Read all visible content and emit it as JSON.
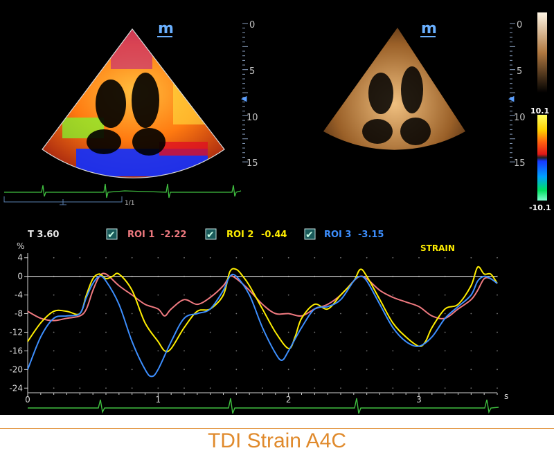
{
  "brand_glyph": "m",
  "depth_scale": {
    "ticks": [
      "0",
      "5",
      "10",
      "15"
    ]
  },
  "color_scale": {
    "max_label": "10.1",
    "min_label": "-10.1"
  },
  "loop": {
    "frame": "1/1"
  },
  "readout": {
    "time": "T 3.60",
    "rois": [
      {
        "label": "ROI 1",
        "value": "-2.22",
        "color": "#f07a80"
      },
      {
        "label": "ROI 2",
        "value": "-0.44",
        "color": "#ffee00"
      },
      {
        "label": "ROI 3",
        "value": "-3.15",
        "color": "#3d8fff"
      }
    ],
    "mode": "STRAIN"
  },
  "chart_data": {
    "type": "line",
    "ylabel": "%",
    "xlabel": "s",
    "xlim": [
      0,
      3.6
    ],
    "ylim": [
      -25,
      5
    ],
    "y_ticks": [
      4,
      0,
      -4,
      -8,
      -12,
      -16,
      -20,
      -24
    ],
    "x_ticks": [
      0,
      1,
      2,
      3
    ],
    "series": [
      {
        "name": "ROI 1",
        "color": "#f07a80",
        "x": [
          0,
          0.1,
          0.2,
          0.3,
          0.4,
          0.45,
          0.5,
          0.55,
          0.6,
          0.7,
          0.8,
          0.9,
          1.0,
          1.05,
          1.1,
          1.2,
          1.3,
          1.4,
          1.5,
          1.55,
          1.6,
          1.7,
          1.8,
          1.9,
          2.0,
          2.1,
          2.2,
          2.3,
          2.4,
          2.5,
          2.55,
          2.6,
          2.7,
          2.8,
          2.9,
          3.0,
          3.1,
          3.2,
          3.3,
          3.4,
          3.45,
          3.5,
          3.55,
          3.6
        ],
        "y": [
          -7.5,
          -9,
          -9.5,
          -9,
          -8.5,
          -7,
          -3,
          0,
          0.5,
          -2,
          -4,
          -6,
          -7,
          -8.5,
          -7,
          -5,
          -6,
          -4.5,
          -2,
          0,
          -0.5,
          -3,
          -6,
          -8,
          -8,
          -8.5,
          -7,
          -6,
          -4,
          -1,
          0,
          -0.5,
          -3,
          -4.5,
          -5.5,
          -6.5,
          -8.5,
          -9,
          -7,
          -5,
          -3,
          -0.5,
          -0.5,
          -1.5
        ]
      },
      {
        "name": "ROI 2",
        "color": "#ffee00",
        "x": [
          0,
          0.1,
          0.2,
          0.3,
          0.4,
          0.45,
          0.5,
          0.55,
          0.6,
          0.65,
          0.7,
          0.8,
          0.9,
          1.0,
          1.05,
          1.1,
          1.2,
          1.3,
          1.4,
          1.5,
          1.55,
          1.6,
          1.65,
          1.7,
          1.8,
          1.9,
          2.0,
          2.05,
          2.1,
          2.2,
          2.3,
          2.4,
          2.5,
          2.55,
          2.6,
          2.7,
          2.8,
          2.9,
          3.0,
          3.05,
          3.1,
          3.2,
          3.3,
          3.4,
          3.45,
          3.5,
          3.55,
          3.6
        ],
        "y": [
          -14,
          -10,
          -7.5,
          -7.5,
          -8,
          -4,
          -0.5,
          0.5,
          -0.5,
          0,
          0.5,
          -3,
          -10,
          -14,
          -16,
          -15.5,
          -11,
          -7.5,
          -7,
          -4,
          1,
          1.5,
          0,
          -2,
          -7,
          -12,
          -15.5,
          -13,
          -9,
          -6,
          -7,
          -4,
          -1,
          1.5,
          0,
          -5,
          -10,
          -13,
          -15,
          -14,
          -11,
          -7,
          -6,
          -2,
          2,
          0.5,
          0.5,
          -1.5
        ]
      },
      {
        "name": "ROI 3",
        "color": "#3d8fff",
        "x": [
          0,
          0.1,
          0.2,
          0.3,
          0.4,
          0.45,
          0.5,
          0.55,
          0.6,
          0.7,
          0.8,
          0.9,
          0.95,
          1.0,
          1.1,
          1.2,
          1.3,
          1.4,
          1.5,
          1.55,
          1.6,
          1.7,
          1.8,
          1.9,
          1.95,
          2.0,
          2.1,
          2.2,
          2.3,
          2.4,
          2.5,
          2.55,
          2.6,
          2.7,
          2.8,
          2.9,
          3.0,
          3.1,
          3.2,
          3.3,
          3.4,
          3.45,
          3.5,
          3.55,
          3.6
        ],
        "y": [
          -20,
          -13,
          -9,
          -8.5,
          -8,
          -4.5,
          -1.5,
          0,
          -1,
          -6,
          -14,
          -20,
          -21.5,
          -20,
          -14,
          -9,
          -8,
          -7,
          -3,
          0,
          0,
          -4,
          -11,
          -16.5,
          -18,
          -16,
          -11,
          -7,
          -6.5,
          -5,
          -1,
          0,
          -1,
          -6,
          -11,
          -14,
          -15,
          -13,
          -9,
          -6.5,
          -4,
          -1,
          0,
          -0.5,
          -1.5
        ]
      }
    ]
  }
}
